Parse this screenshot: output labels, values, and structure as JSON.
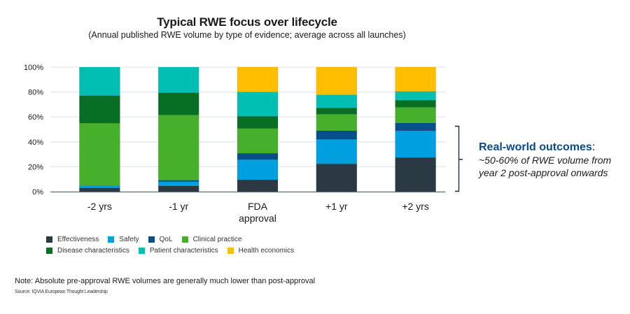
{
  "chart_data": {
    "type": "bar",
    "stacked": true,
    "title": "Typical RWE focus over lifecycle",
    "subtitle": "(Annual published RWE volume by type of evidence; average across all launches)",
    "xlabel": "",
    "ylabel": "",
    "ylim": [
      0,
      100
    ],
    "yticks": [
      "0%",
      "20%",
      "40%",
      "60%",
      "80%",
      "100%"
    ],
    "ytick_values": [
      0,
      20,
      40,
      60,
      80,
      100
    ],
    "grid": true,
    "legend_position": "bottom-left",
    "categories": [
      {
        "line1": "-2 yrs",
        "line2": ""
      },
      {
        "line1": "-1 yr",
        "line2": ""
      },
      {
        "line1": "FDA",
        "line2": "approval"
      },
      {
        "line1": "+1 yr",
        "line2": ""
      },
      {
        "line1": "+2 yrs",
        "line2": ""
      }
    ],
    "series": [
      {
        "name": "Effectiveness",
        "color": "#2b3a42",
        "values": [
          3,
          4.5,
          9.5,
          22.3,
          27.4
        ]
      },
      {
        "name": "Safety",
        "color": "#00a0e0",
        "values": [
          2,
          3.5,
          16.2,
          19.7,
          21.5
        ]
      },
      {
        "name": "QoL",
        "color": "#06508a",
        "values": [
          0,
          1,
          5.1,
          6.9,
          6.2
        ]
      },
      {
        "name": "Clinical practice",
        "color": "#46b02c",
        "values": [
          50,
          52.6,
          19.9,
          13.3,
          12.7
        ]
      },
      {
        "name": "Disease characteristics",
        "color": "#066f24",
        "values": [
          22.1,
          17.8,
          9.8,
          5,
          5.6
        ]
      },
      {
        "name": "Patient characteristics",
        "color": "#00bfb2",
        "values": [
          22.9,
          20.6,
          19.5,
          10.5,
          7.1
        ]
      },
      {
        "name": "Health economics",
        "color": "#ffbf00",
        "values": [
          0,
          0,
          20,
          22.3,
          19.5
        ]
      }
    ]
  },
  "legend_rows": [
    [
      0,
      1,
      2,
      3
    ],
    [
      4,
      5,
      6
    ]
  ],
  "callout": {
    "heading": "Real-world outcomes",
    "colon": ":",
    "line1": "~50-60% of RWE volume from",
    "line2": "year 2 post-approval onwards",
    "color": "#0a4a8a"
  },
  "note": "Note: Absolute pre-approval RWE volumes are generally much lower than post-approval",
  "source": "Source: IQVIA European Thought Leadership"
}
